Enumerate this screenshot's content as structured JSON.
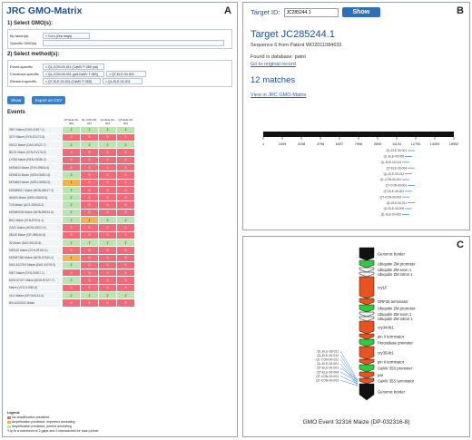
{
  "panelA": {
    "letter": "A",
    "title": "JRC GMO-Matrix",
    "section1": "1) Select GMO(s):",
    "by_taxon_label": "By taxon(a)",
    "taxon_value": "× Corn (Zea mays)",
    "specific_label": "Specific GMO(s)",
    "section2": "2) Select method(s):",
    "event_label": "Event-specific",
    "event_value": "× QL-CON-00-011 (CaMV P-35S pat)",
    "construct_label": "Construct-specific",
    "construct_value1": "× QL-CON-00-001 (pat-CaMV T-35S)",
    "construct_value2": "× QT-ELE-00-004",
    "element_label": "Element-specific",
    "element_value1": "× QT-ELE-00-001 (CaMV P-35S)",
    "element_value2": "× QL-ELE-00-001",
    "show_button": "Show",
    "export_button": "Export as CSV",
    "events_heading": "Events",
    "columns": [
      "QT-ELE-00-004",
      "QL-CON-00-011",
      "QL-ELE-00-001",
      "QT-ELE-00-001"
    ],
    "rows": [
      {
        "event": "3507 Maize (DAS-01507-1)",
        "vals": [
          2,
          2,
          2,
          2
        ]
      },
      {
        "event": "3272 Maize (SYN-E3272-5)",
        "vals": [
          0,
          0,
          0,
          0
        ]
      },
      {
        "event": "59122 Maize (DAS-59122-7)",
        "vals": [
          2,
          2,
          2,
          2
        ]
      },
      {
        "event": "Bt176 Maize (SYN-EV176-9)",
        "vals": [
          0,
          0,
          0,
          0
        ]
      },
      {
        "event": "LY038 Maize (REN-00038-3)",
        "vals": [
          0,
          0,
          0,
          0
        ]
      },
      {
        "event": "MON604 Maize (SYN-IR604-5)",
        "vals": [
          0,
          0,
          0,
          0
        ]
      },
      {
        "event": "MON810 Maize (MON-00810-6)",
        "vals": [
          2,
          0,
          0,
          0
        ]
      },
      {
        "event": "MON863 Maize (MON-00863-5)",
        "vals": [
          1,
          0,
          0,
          0
        ]
      },
      {
        "event": "MON88017 Maize (MON-88017-3)",
        "vals": [
          2,
          0,
          0,
          0
        ]
      },
      {
        "event": "NK603 Maize (MON-00603-6)",
        "vals": [
          2,
          0,
          0,
          0
        ]
      },
      {
        "event": "T25 Maize (ACS-ZM003-2)",
        "vals": [
          2,
          0,
          0,
          0
        ]
      },
      {
        "event": "MON89034 Maize (MON-89034-3)",
        "vals": [
          2,
          0,
          0,
          0
        ]
      },
      {
        "event": "Bt11 Maize (SYN-BT011-1)",
        "vals": [
          2,
          1,
          2,
          2
        ]
      },
      {
        "event": "GA21 Maize (MON-00021-9)",
        "vals": [
          0,
          0,
          0,
          0
        ]
      },
      {
        "event": "98140 Maize (DP-098140-6)",
        "vals": [
          0,
          0,
          0,
          0
        ]
      },
      {
        "event": "32 Maize (DAS-59132-8)",
        "vals": [
          2,
          2,
          2,
          2
        ]
      },
      {
        "event": "MIR162 Maize (SYN-IR162-4)",
        "vals": [
          0,
          0,
          0,
          0
        ]
      },
      {
        "event": "MON87460 Maize (MON-87460-4)",
        "vals": [
          1,
          0,
          0,
          0
        ]
      },
      {
        "event": "DAS-40278-9 Maize (DAS-40278-9)",
        "vals": [
          2,
          0,
          0,
          0
        ]
      },
      {
        "event": "5307 Maize (SYN-05307-1)",
        "vals": [
          0,
          0,
          0,
          0
        ]
      },
      {
        "event": "MON 87427 Maize (MON-87427-7)",
        "vals": [
          2,
          0,
          0,
          0
        ]
      },
      {
        "event": "Maize (VCO-01981-5)",
        "vals": [
          0,
          0,
          0,
          0
        ]
      },
      {
        "event": "4114 Maize (DP-004114-3)",
        "vals": [
          2,
          2,
          2,
          2
        ]
      },
      {
        "event": "BVLA430101 Maize",
        "vals": [
          0,
          0,
          0,
          0
        ]
      }
    ],
    "legend_title": "Legend:",
    "legend_items": [
      {
        "label": "No amplification predicted",
        "color": "#f06a7a"
      },
      {
        "label": "Amplification predicted, imperfect annealing",
        "color": "#f4b24c"
      },
      {
        "label": "Amplification predicted, perfect annealing",
        "color": "#b8e5b0"
      }
    ],
    "legend_note": "*Up to a maximum of 2 gaps and 3 mismatches for each primer"
  },
  "panelB": {
    "letter": "B",
    "target_label": "Target ID:",
    "target_value": "JC285244.1",
    "show_button": "Show",
    "heading": "Target JC285244.1",
    "sequence_text": "Sequence 6 from Patent WO2011084632.",
    "found_text": "Found in database: patnt",
    "original_link": "Go to original record",
    "matches": "12 matches",
    "matrix_link": "View in JRC GMO-Matrix",
    "ticks": [
      "1",
      "1599",
      "3198",
      "4798",
      "6397",
      "7996",
      "9595",
      "11194",
      "12794",
      "14393",
      "15992"
    ],
    "match_labels": [
      "QL-ELE-00-001",
      "QL-ELE-00-006",
      "QL-ELE-00-014",
      "QT-ELE-00-004",
      "QL-ELE-00-012",
      "QL-CON-00-011",
      "QT-CON-00-001",
      "QT-ELE-00-001",
      "QT-CON-00-003",
      "QL-ELE-00-011",
      "QL-ELE-00-009",
      "QL-ELE-00-002"
    ]
  },
  "panelC": {
    "letter": "C",
    "caption": "GMO Event 32316 Maize (DP-032316-8)",
    "element_labels": [
      "Genomic border",
      "Ubiquitin ZM promoter",
      "Ubiquitin ZM exon 1",
      "Ubiquitin ZM intron 1",
      "cry1F",
      "ORF25 terminator",
      "Ubiquitin ZM promoter",
      "Ubiquitin ZM exon 1",
      "Ubiquitin ZM intron 1",
      "cry34Ab1",
      "pin II terminator",
      "Peroxidase promoter",
      "cry35Ab1",
      "pin II terminator",
      "CaMV 35S promoter",
      "pat",
      "CaMV 35S terminator",
      "Genomic border"
    ],
    "method_labels": [
      "QL-ELE-00-011",
      "QL-ELE-00-012",
      "QL-CON-00-011",
      "QL-ELE-00-001",
      "QT-ELE-00-001",
      "QT-ELE-00-004",
      "QT-CON-00-001",
      "QT-CON-00-003"
    ]
  }
}
